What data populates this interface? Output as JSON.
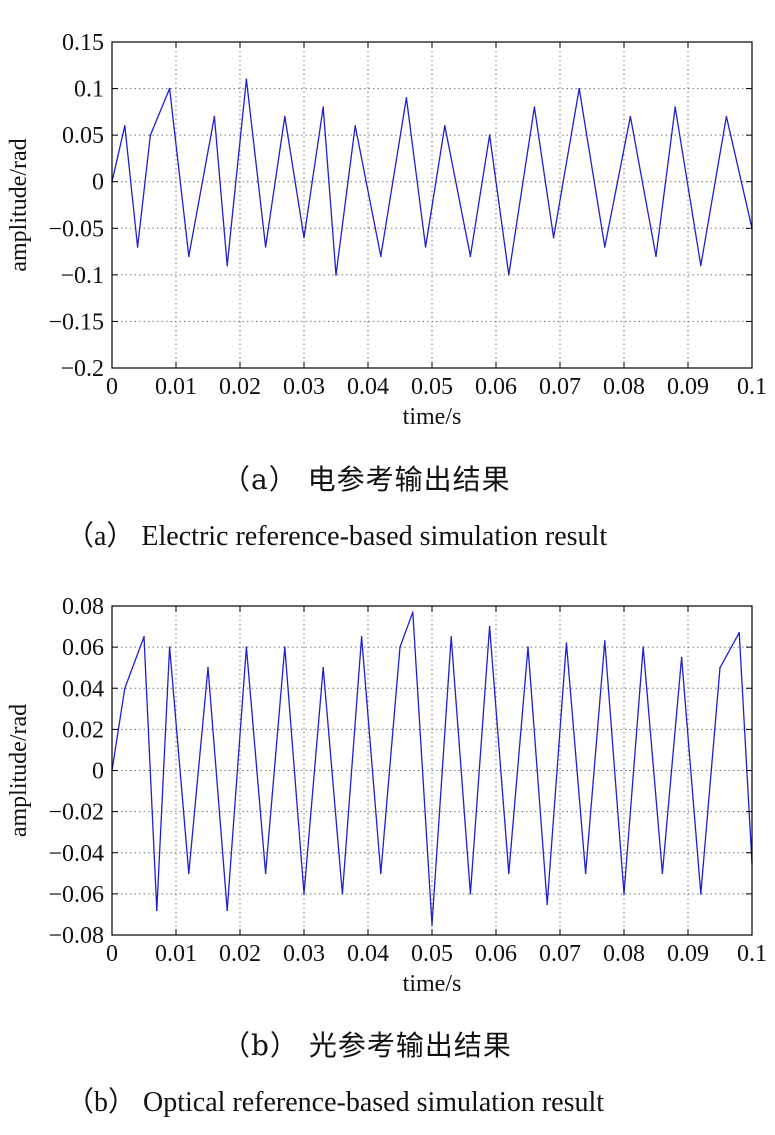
{
  "chart_data": [
    {
      "type": "line",
      "id": "a",
      "xlabel": "time/s",
      "ylabel": "amplitude/rad",
      "xlim": [
        0,
        0.1
      ],
      "ylim": [
        -0.2,
        0.15
      ],
      "xticks": [
        "0",
        "0.01",
        "0.02",
        "0.03",
        "0.04",
        "0.05",
        "0.06",
        "0.07",
        "0.08",
        "0.09",
        "0.1"
      ],
      "yticks": [
        "0.15",
        "0.1",
        "0.05",
        "0",
        "−0.05",
        "−0.1",
        "−0.15",
        "−0.2"
      ],
      "ytick_values": [
        0.15,
        0.1,
        0.05,
        0,
        -0.05,
        -0.1,
        -0.15,
        -0.2
      ],
      "grid": true,
      "line_color": "#1f1fd0",
      "series": [
        {
          "x": [
            0,
            0.002,
            0.004,
            0.006,
            0.009,
            0.012,
            0.016,
            0.018,
            0.021,
            0.024,
            0.027,
            0.03,
            0.033,
            0.035,
            0.038,
            0.042,
            0.046,
            0.049,
            0.052,
            0.056,
            0.059,
            0.062,
            0.066,
            0.069,
            0.073,
            0.077,
            0.081,
            0.085,
            0.088,
            0.092,
            0.096,
            0.1
          ],
          "y": [
            0.0,
            0.06,
            -0.07,
            0.05,
            0.1,
            -0.08,
            0.07,
            -0.09,
            0.11,
            -0.07,
            0.07,
            -0.06,
            0.08,
            -0.1,
            0.06,
            -0.08,
            0.09,
            -0.07,
            0.06,
            -0.08,
            0.05,
            -0.1,
            0.08,
            -0.06,
            0.1,
            -0.07,
            0.07,
            -0.08,
            0.08,
            -0.09,
            0.07,
            -0.05
          ]
        }
      ]
    },
    {
      "type": "line",
      "id": "b",
      "xlabel": "time/s",
      "ylabel": "amplitude/rad",
      "xlim": [
        0,
        0.1
      ],
      "ylim": [
        -0.08,
        0.08
      ],
      "xticks": [
        "0",
        "0.01",
        "0.02",
        "0.03",
        "0.04",
        "0.05",
        "0.06",
        "0.07",
        "0.08",
        "0.09",
        "0.1"
      ],
      "yticks": [
        "0.08",
        "0.06",
        "0.04",
        "0.02",
        "0",
        "−0.02",
        "−0.04",
        "−0.06",
        "−0.08"
      ],
      "ytick_values": [
        0.08,
        0.06,
        0.04,
        0.02,
        0,
        -0.02,
        -0.04,
        -0.06,
        -0.08
      ],
      "grid": true,
      "line_color": "#1f1fd0",
      "series": [
        {
          "x": [
            0,
            0.002,
            0.005,
            0.007,
            0.009,
            0.012,
            0.015,
            0.018,
            0.021,
            0.024,
            0.027,
            0.03,
            0.033,
            0.036,
            0.039,
            0.042,
            0.045,
            0.047,
            0.05,
            0.053,
            0.056,
            0.059,
            0.062,
            0.065,
            0.068,
            0.071,
            0.074,
            0.077,
            0.08,
            0.083,
            0.086,
            0.089,
            0.092,
            0.095,
            0.098,
            0.1
          ],
          "y": [
            0.0,
            0.04,
            0.065,
            -0.068,
            0.06,
            -0.05,
            0.05,
            -0.068,
            0.06,
            -0.05,
            0.06,
            -0.06,
            0.05,
            -0.06,
            0.065,
            -0.05,
            0.06,
            0.077,
            -0.075,
            0.065,
            -0.06,
            0.07,
            -0.05,
            0.06,
            -0.065,
            0.062,
            -0.05,
            0.063,
            -0.06,
            0.06,
            -0.05,
            0.055,
            -0.06,
            0.05,
            0.067,
            -0.045
          ]
        }
      ]
    }
  ],
  "captions": {
    "a_cn": "（a） 电参考输出结果",
    "a_en": "（a）  Electric reference-based simulation result",
    "b_cn": "（b） 光参考输出结果",
    "b_en": "（b）  Optical reference-based simulation result"
  }
}
